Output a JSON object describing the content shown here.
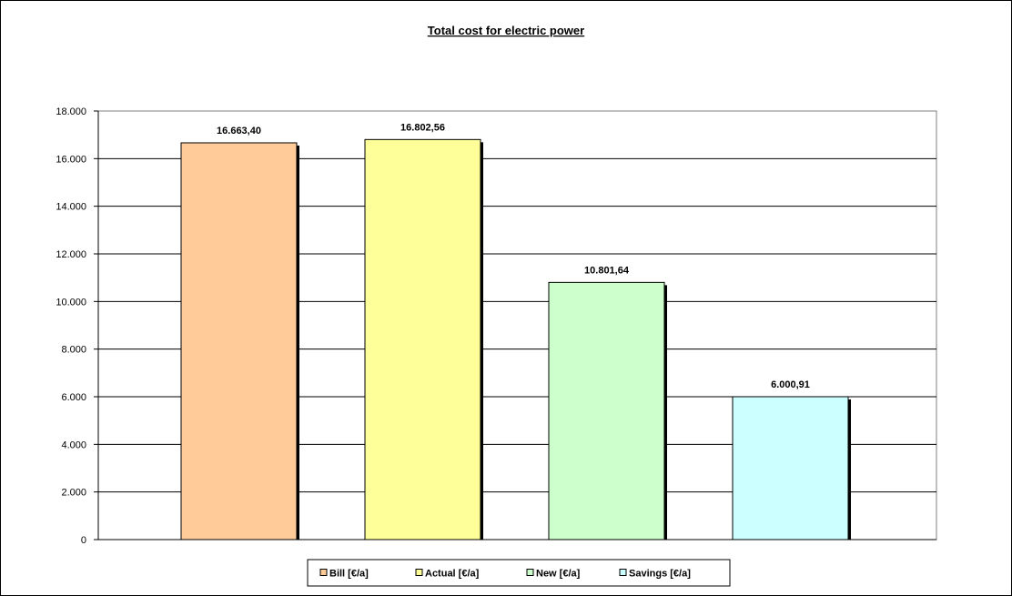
{
  "chart_data": {
    "type": "bar",
    "title": "Total cost for electric power",
    "xlabel": "",
    "ylabel": "",
    "ylim": [
      0,
      18000
    ],
    "ytick_step": 2000,
    "ytick_labels": [
      "0",
      "2.000",
      "4.000",
      "6.000",
      "8.000",
      "10.000",
      "12.000",
      "14.000",
      "16.000",
      "18.000"
    ],
    "grid": true,
    "legend_position": "bottom",
    "series": [
      {
        "name": "Bill [€/a]",
        "value": 16663.4,
        "label": "16.663,40",
        "color": "#FFCC99"
      },
      {
        "name": "Actual [€/a]",
        "value": 16802.56,
        "label": "16.802,56",
        "color": "#FFFF99"
      },
      {
        "name": "New [€/a]",
        "value": 10801.64,
        "label": "10.801,64",
        "color": "#CCFFCC"
      },
      {
        "name": "Savings [€/a]",
        "value": 6000.91,
        "label": "6.000,91",
        "color": "#CCFFFF"
      }
    ]
  }
}
